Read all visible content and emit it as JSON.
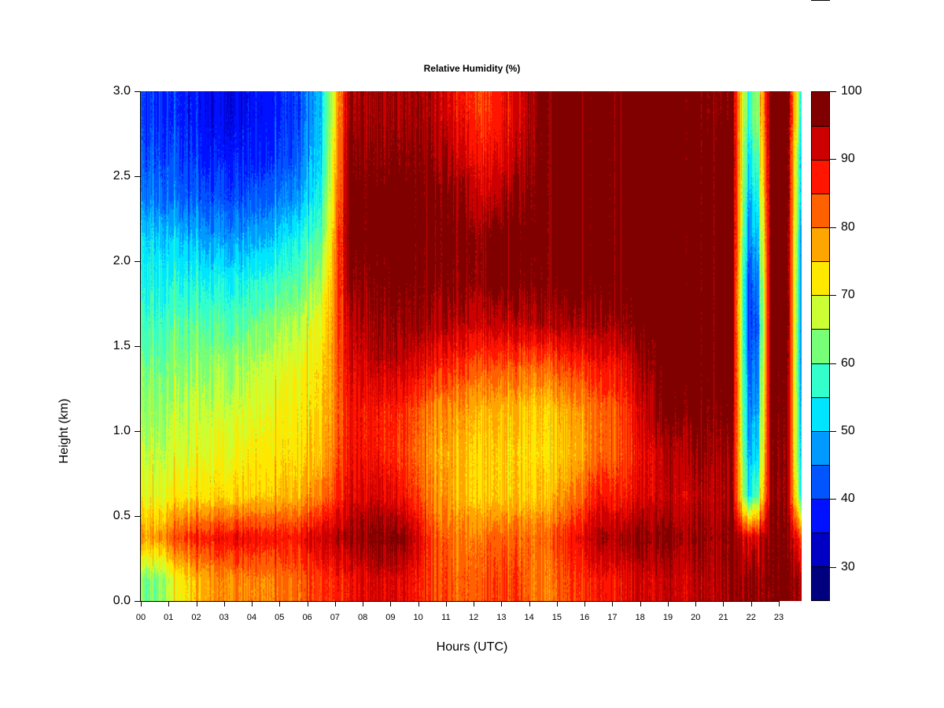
{
  "chart_data": {
    "type": "heatmap",
    "title": "Relative Humidity (%)",
    "xlabel": "Hours (UTC)",
    "ylabel": "Height (km)",
    "xlim": [
      0,
      23.82
    ],
    "ylim": [
      0,
      3.0
    ],
    "x_ticks": [
      "00",
      "01",
      "02",
      "03",
      "04",
      "05",
      "06",
      "07",
      "08",
      "09",
      "10",
      "11",
      "12",
      "13",
      "14",
      "15",
      "16",
      "17",
      "18",
      "19",
      "20",
      "21",
      "22",
      "23"
    ],
    "y_ticks": [
      "0.0",
      "0.5",
      "1.0",
      "1.5",
      "2.0",
      "2.5",
      "3.0"
    ],
    "colorbar": {
      "levels": [
        25,
        30,
        35,
        40,
        45,
        50,
        55,
        60,
        65,
        70,
        75,
        80,
        85,
        90,
        95,
        100
      ],
      "tick_labels": [
        "30",
        "40",
        "50",
        "60",
        "70",
        "80",
        "90",
        "100"
      ],
      "colors": [
        "#00007f",
        "#0000c4",
        "#0011ff",
        "#0055ff",
        "#0099ff",
        "#00e5ff",
        "#33ffcc",
        "#77ff77",
        "#ccff33",
        "#ffe800",
        "#ffa500",
        "#ff6000",
        "#ff1500",
        "#cc0000",
        "#800000"
      ]
    },
    "heights_km": [
      0.125,
      0.375,
      0.625,
      0.875,
      1.125,
      1.375,
      1.625,
      1.875,
      2.125,
      2.375,
      2.625,
      2.875
    ],
    "times_h": [
      0.5,
      1.5,
      2.5,
      3.5,
      4.5,
      5.5,
      6.5,
      7.5,
      8.5,
      9.5,
      10.5,
      11.5,
      12.5,
      13.5,
      14.5,
      15.5,
      16.5,
      17.5,
      18.5,
      19.5,
      20.5,
      21.3,
      21.9,
      22.2,
      22.7,
      23.3,
      23.8
    ],
    "values": [
      [
        62,
        78,
        70,
        67,
        64,
        62,
        58,
        55,
        52,
        45,
        42,
        40
      ],
      [
        72,
        85,
        72,
        68,
        66,
        63,
        60,
        55,
        50,
        43,
        40,
        38
      ],
      [
        78,
        88,
        73,
        70,
        67,
        64,
        60,
        55,
        48,
        42,
        38,
        36
      ],
      [
        80,
        90,
        74,
        71,
        68,
        65,
        60,
        55,
        48,
        42,
        38,
        36
      ],
      [
        80,
        88,
        75,
        72,
        70,
        67,
        63,
        57,
        50,
        43,
        39,
        37
      ],
      [
        82,
        88,
        76,
        73,
        72,
        70,
        66,
        60,
        55,
        47,
        42,
        40
      ],
      [
        85,
        92,
        80,
        75,
        73,
        72,
        70,
        65,
        60,
        55,
        52,
        50
      ],
      [
        88,
        95,
        90,
        88,
        88,
        90,
        92,
        96,
        98,
        98,
        97,
        95
      ],
      [
        92,
        98,
        92,
        88,
        88,
        93,
        96,
        98,
        99,
        99,
        97,
        95
      ],
      [
        90,
        97,
        88,
        85,
        86,
        92,
        96,
        98,
        99,
        99,
        97,
        95
      ],
      [
        85,
        85,
        80,
        78,
        80,
        88,
        95,
        98,
        99,
        99,
        97,
        95
      ],
      [
        82,
        80,
        76,
        76,
        78,
        85,
        93,
        97,
        98,
        96,
        92,
        88
      ],
      [
        84,
        82,
        74,
        74,
        76,
        83,
        92,
        97,
        97,
        92,
        88,
        85
      ],
      [
        84,
        82,
        74,
        73,
        75,
        82,
        92,
        98,
        99,
        96,
        92,
        90
      ],
      [
        80,
        82,
        75,
        73,
        74,
        82,
        94,
        98,
        99,
        99,
        99,
        99
      ],
      [
        85,
        88,
        80,
        76,
        78,
        85,
        95,
        99,
        99,
        99,
        99,
        99
      ],
      [
        88,
        95,
        88,
        82,
        82,
        88,
        95,
        99,
        99,
        99,
        99,
        99
      ],
      [
        90,
        96,
        88,
        85,
        86,
        90,
        97,
        99,
        99,
        99,
        99,
        99
      ],
      [
        92,
        97,
        92,
        92,
        96,
        98,
        99,
        99,
        99,
        99,
        99,
        99
      ],
      [
        92,
        96,
        92,
        95,
        98,
        99,
        99,
        99,
        99,
        99,
        99,
        99
      ],
      [
        94,
        96,
        94,
        96,
        98,
        99,
        99,
        99,
        99,
        99,
        99,
        98
      ],
      [
        96,
        97,
        95,
        96,
        98,
        99,
        99,
        99,
        99,
        99,
        99,
        97
      ],
      [
        96,
        90,
        52,
        48,
        45,
        42,
        40,
        40,
        45,
        48,
        52,
        55
      ],
      [
        97,
        92,
        60,
        52,
        48,
        45,
        42,
        45,
        50,
        55,
        60,
        65
      ],
      [
        98,
        98,
        97,
        98,
        99,
        99,
        99,
        99,
        99,
        99,
        99,
        99
      ],
      [
        98,
        97,
        96,
        96,
        97,
        98,
        99,
        99,
        99,
        99,
        99,
        99
      ],
      [
        95,
        85,
        55,
        50,
        48,
        45,
        45,
        45,
        45,
        50,
        50,
        55
      ]
    ]
  }
}
